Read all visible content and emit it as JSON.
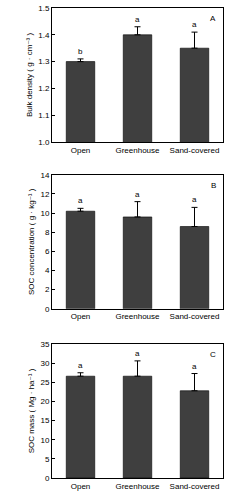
{
  "chart_data": [
    {
      "type": "bar",
      "y_label": "Bulk density ( g · cm⁻³ )",
      "categories": [
        "Open",
        "Greenhouse",
        "Sand-covered"
      ],
      "values": [
        1.3,
        1.4,
        1.35
      ],
      "errors": [
        0.01,
        0.03,
        0.06
      ],
      "color": "#3f3f3f",
      "ylim": [
        1.0,
        1.5
      ],
      "yticks": [
        {
          "value": 1.0,
          "label": "1.0"
        },
        1.1,
        1.2,
        1.3,
        1.4,
        1.5
      ],
      "annotations": {
        "panel": "A",
        "letters": [
          "b",
          "a",
          "a"
        ]
      }
    },
    {
      "type": "bar",
      "y_label": "SOC concentration ( g · kg⁻¹ )",
      "categories": [
        "Open",
        "Greenhouse",
        "Sand-covered"
      ],
      "values": [
        10.2,
        9.6,
        8.6
      ],
      "errors": [
        0.3,
        1.6,
        2.0
      ],
      "color": "#3f3f3f",
      "ylim": [
        0,
        14
      ],
      "yticks": [
        0,
        2,
        4,
        6,
        8,
        10,
        12,
        14
      ],
      "annotations": {
        "panel": "B",
        "letters": [
          "a",
          "a",
          "a"
        ]
      }
    },
    {
      "type": "bar",
      "y_label": "SOC mass ( Mg · ha⁻¹ )",
      "categories": [
        "Open",
        "Greenhouse",
        "Sand-covered"
      ],
      "values": [
        26.6,
        26.6,
        22.8
      ],
      "errors": [
        0.9,
        4.0,
        4.5
      ],
      "color": "#3f3f3f",
      "ylim": [
        0,
        35
      ],
      "yticks": [
        0,
        5,
        10,
        15,
        20,
        25,
        30,
        35
      ],
      "annotations": {
        "panel": "C",
        "letters": [
          "a",
          "a",
          "a"
        ]
      }
    }
  ]
}
